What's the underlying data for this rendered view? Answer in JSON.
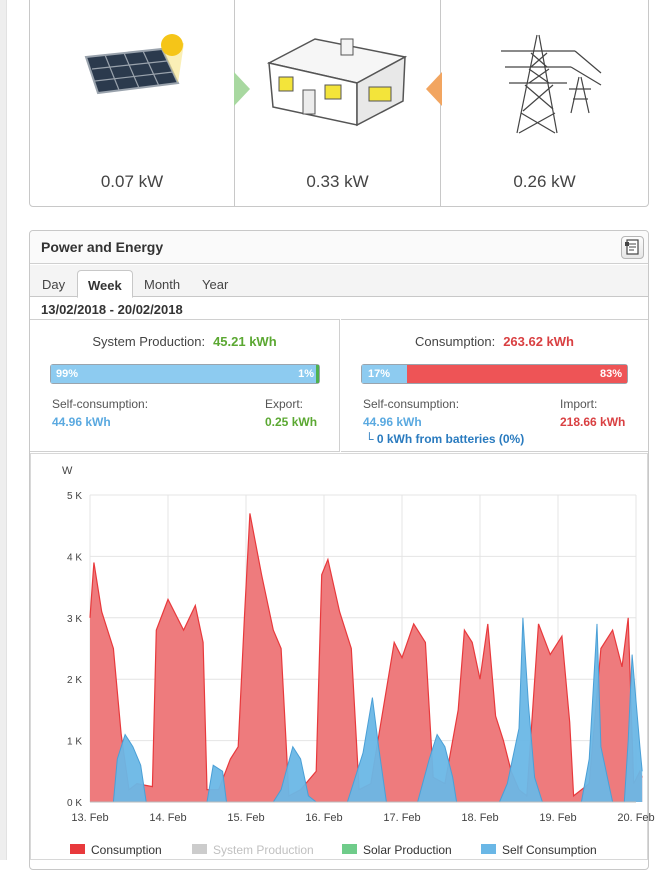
{
  "flow": {
    "solar_value": "0.07 kW",
    "house_value": "0.33 kW",
    "grid_value": "0.26 kW",
    "solar_icon": "solar-panel-icon",
    "house_icon": "house-icon",
    "grid_icon": "power-pylon-icon"
  },
  "panel": {
    "title": "Power and Energy",
    "export_icon": "export-icon",
    "tabs": [
      "Day",
      "Week",
      "Month",
      "Year"
    ],
    "active_tab": "Week",
    "date_range": "13/02/2018 - 20/02/2018"
  },
  "production": {
    "label": "System Production:",
    "value": "45.21 kWh",
    "bar_left_pct": "99%",
    "bar_right_pct": "1%",
    "self_fraction": 0.99,
    "left_label": "Self-consumption:",
    "left_value": "44.96 kWh",
    "right_label": "Export:",
    "right_value": "0.25 kWh"
  },
  "consumption": {
    "label": "Consumption:",
    "value": "263.62 kWh",
    "bar_left_pct": "17%",
    "bar_right_pct": "83%",
    "self_fraction": 0.17,
    "left_label": "Self-consumption:",
    "left_value": "44.96 kWh",
    "right_label": "Import:",
    "right_value": "218.66 kWh",
    "batteries_note": "0 kWh from batteries (0%)"
  },
  "colors": {
    "consumption": "#e8393c",
    "consumption_fill": "#ee7b7d",
    "system_production": "#cccccc",
    "solar_production": "#6fcc8a",
    "self_consumption": "#6ab7e6",
    "green_text": "#5ba832",
    "blue_text": "#5aa9e0",
    "red_text": "#d94042"
  },
  "chart_data": {
    "type": "area",
    "ylabel": "W",
    "yticks": [
      "0 K",
      "1 K",
      "2 K",
      "3 K",
      "4 K",
      "5 K"
    ],
    "ylim": [
      0,
      5000
    ],
    "xticks": [
      "13. Feb",
      "14. Feb",
      "15. Feb",
      "16. Feb",
      "17. Feb",
      "18. Feb",
      "19. Feb",
      "20. Feb"
    ],
    "grid": true,
    "legend_position": "bottom",
    "legend": [
      "Consumption",
      "System Production",
      "Solar Production",
      "Self Consumption"
    ],
    "series": [
      {
        "name": "Consumption",
        "points": [
          [
            0,
            3000
          ],
          [
            0.05,
            3900
          ],
          [
            0.15,
            3100
          ],
          [
            0.3,
            2500
          ],
          [
            0.4,
            1100
          ],
          [
            0.5,
            200
          ],
          [
            0.6,
            300
          ],
          [
            0.8,
            250
          ],
          [
            0.85,
            2800
          ],
          [
            1.0,
            3300
          ],
          [
            1.2,
            2800
          ],
          [
            1.35,
            3200
          ],
          [
            1.45,
            2600
          ],
          [
            1.5,
            200
          ],
          [
            1.65,
            200
          ],
          [
            1.8,
            700
          ],
          [
            1.9,
            900
          ],
          [
            1.98,
            3000
          ],
          [
            2.05,
            4700
          ],
          [
            2.2,
            3700
          ],
          [
            2.35,
            2800
          ],
          [
            2.45,
            2500
          ],
          [
            2.55,
            100
          ],
          [
            2.7,
            200
          ],
          [
            2.9,
            500
          ],
          [
            2.97,
            3700
          ],
          [
            3.05,
            3950
          ],
          [
            3.2,
            3100
          ],
          [
            3.35,
            2500
          ],
          [
            3.45,
            200
          ],
          [
            3.6,
            300
          ],
          [
            3.9,
            2600
          ],
          [
            4.0,
            2350
          ],
          [
            4.15,
            2900
          ],
          [
            4.3,
            2600
          ],
          [
            4.4,
            400
          ],
          [
            4.55,
            300
          ],
          [
            4.72,
            1500
          ],
          [
            4.8,
            2800
          ],
          [
            4.9,
            2600
          ],
          [
            5.0,
            2000
          ],
          [
            5.1,
            2900
          ],
          [
            5.2,
            1400
          ],
          [
            5.3,
            1000
          ],
          [
            5.4,
            500
          ],
          [
            5.5,
            200
          ],
          [
            5.6,
            100
          ],
          [
            5.75,
            2900
          ],
          [
            5.9,
            2400
          ],
          [
            6.05,
            2700
          ],
          [
            6.15,
            1300
          ],
          [
            6.2,
            100
          ],
          [
            6.4,
            300
          ],
          [
            6.55,
            2500
          ],
          [
            6.7,
            2800
          ],
          [
            6.82,
            2200
          ],
          [
            6.9,
            3000
          ],
          [
            6.97,
            300
          ],
          [
            7.05,
            500
          ],
          [
            7.08,
            400
          ]
        ]
      },
      {
        "name": "Self Consumption",
        "points": [
          [
            0,
            0
          ],
          [
            0.3,
            0
          ],
          [
            0.35,
            700
          ],
          [
            0.45,
            1100
          ],
          [
            0.55,
            900
          ],
          [
            0.65,
            600
          ],
          [
            0.72,
            0
          ],
          [
            1.5,
            0
          ],
          [
            1.58,
            600
          ],
          [
            1.7,
            500
          ],
          [
            1.75,
            0
          ],
          [
            2.35,
            0
          ],
          [
            2.45,
            200
          ],
          [
            2.6,
            900
          ],
          [
            2.7,
            700
          ],
          [
            2.8,
            100
          ],
          [
            2.9,
            0
          ],
          [
            3.3,
            0
          ],
          [
            3.5,
            800
          ],
          [
            3.62,
            1700
          ],
          [
            3.7,
            900
          ],
          [
            3.8,
            0
          ],
          [
            4.2,
            0
          ],
          [
            4.35,
            700
          ],
          [
            4.45,
            1100
          ],
          [
            4.55,
            900
          ],
          [
            4.65,
            400
          ],
          [
            4.7,
            0
          ],
          [
            5.25,
            0
          ],
          [
            5.35,
            300
          ],
          [
            5.5,
            1200
          ],
          [
            5.55,
            3000
          ],
          [
            5.62,
            1600
          ],
          [
            5.7,
            400
          ],
          [
            5.8,
            0
          ],
          [
            6.3,
            0
          ],
          [
            6.4,
            700
          ],
          [
            6.5,
            2900
          ],
          [
            6.55,
            900
          ],
          [
            6.65,
            300
          ],
          [
            6.7,
            0
          ],
          [
            6.85,
            0
          ],
          [
            6.9,
            1000
          ],
          [
            6.95,
            2400
          ],
          [
            7.05,
            900
          ],
          [
            7.08,
            500
          ]
        ]
      }
    ]
  }
}
